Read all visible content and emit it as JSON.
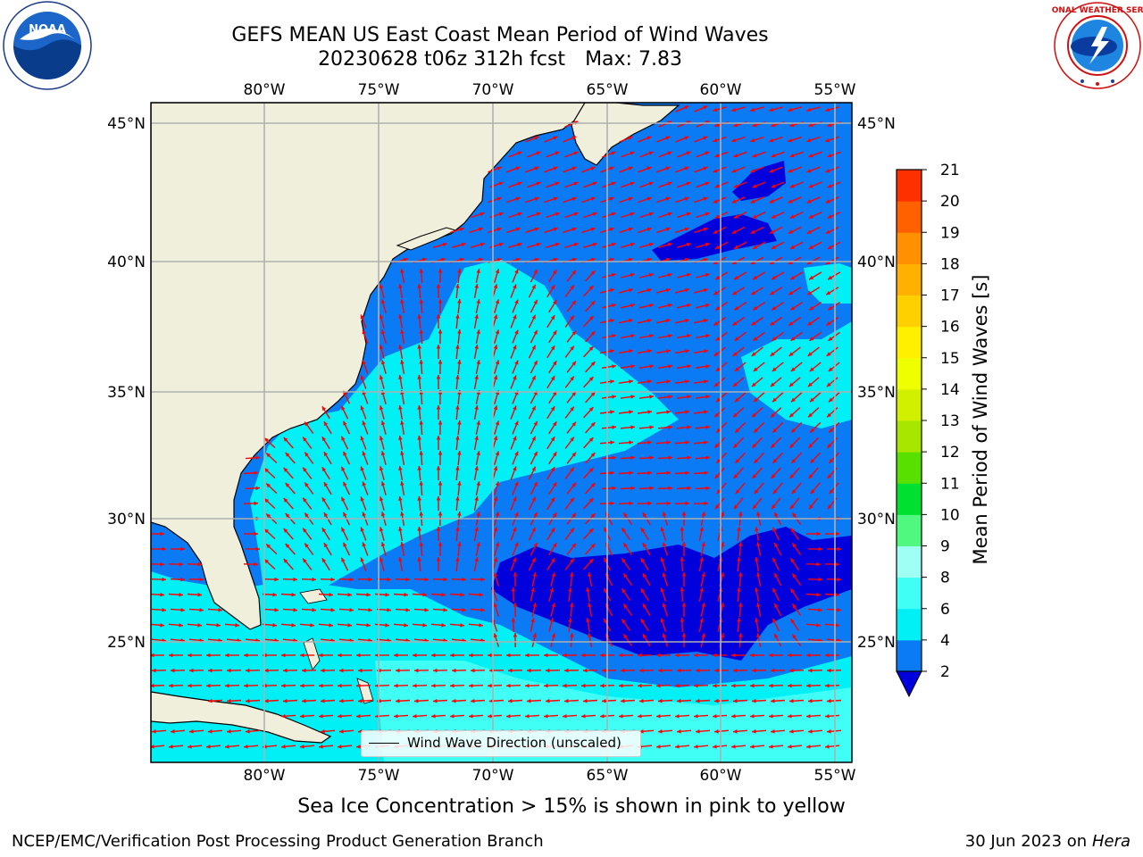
{
  "header": {
    "title_line1": "GEFS MEAN US East Coast Mean Period of Wind Waves",
    "title_date": "20230628 t06z 312h fcst",
    "title_max": "Max: 7.83"
  },
  "logos": {
    "left": {
      "icon": "noaa-logo",
      "text": "NOAA"
    },
    "right": {
      "icon": "national-weather-service-logo",
      "text": "NATIONAL WEATHER SERVICE"
    }
  },
  "map": {
    "lon_labels": [
      "80°W",
      "75°W",
      "70°W",
      "65°W",
      "60°W",
      "55°W"
    ],
    "lat_labels": [
      "45°N",
      "40°N",
      "35°N",
      "30°N",
      "25°N"
    ],
    "legend_label": "Wind Wave Direction (unscaled)",
    "arrow_color": "#ff0000",
    "land_color": "#efefdc",
    "grid_color": "#b0b0b0"
  },
  "colorbar": {
    "label": "Mean Period of Wind Waves [s]",
    "ticks": [
      "2",
      "4",
      "6",
      "8",
      "9",
      "10",
      "11",
      "12",
      "13",
      "14",
      "15",
      "16",
      "17",
      "18",
      "19",
      "20",
      "21"
    ],
    "colors": [
      "#0a7af5",
      "#00f0f5",
      "#40fff5",
      "#a0fff5",
      "#50f880",
      "#00e030",
      "#58e000",
      "#a8e600",
      "#d0f000",
      "#f0ff00",
      "#fff000",
      "#ffd000",
      "#ffb000",
      "#ff9000",
      "#ff6000",
      "#ff3000"
    ],
    "under_color": "#0000dd"
  },
  "footer": {
    "subtitle": "Sea Ice Concentration > 15% is shown in pink to yellow",
    "left": "NCEP/EMC/Verification Post Processing Product Generation Branch",
    "right_date": "30 Jun 2023 on",
    "right_machine": "Hera"
  }
}
